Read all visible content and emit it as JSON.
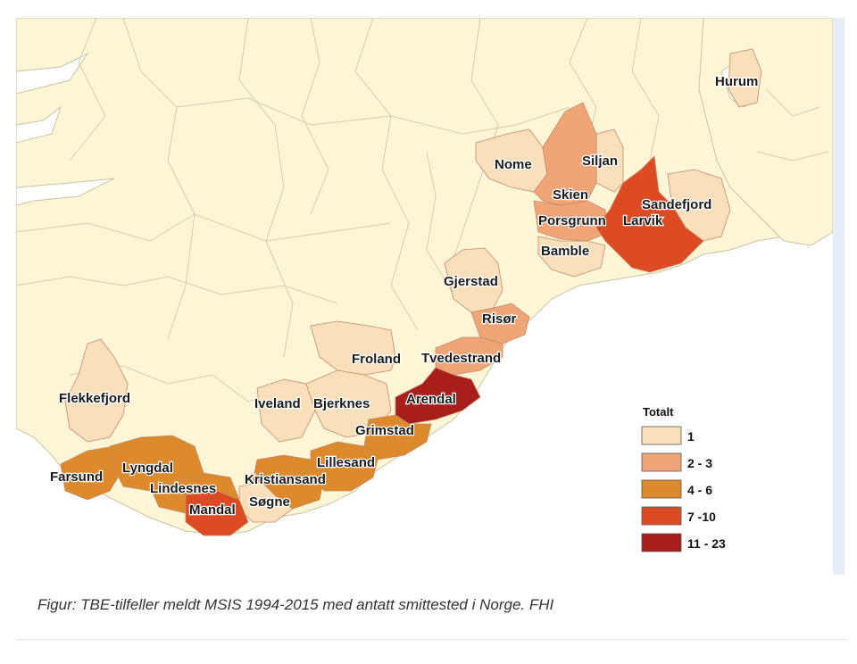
{
  "legend": {
    "title": "Totalt",
    "classes": [
      {
        "label": "1",
        "color": "#f9dfba"
      },
      {
        "label": "2 - 3",
        "color": "#f0a576"
      },
      {
        "label": "4 - 6",
        "color": "#dc8a2c"
      },
      {
        "label": "7 -10",
        "color": "#dd4b24"
      },
      {
        "label": "11 - 23",
        "color": "#a71e1c"
      }
    ]
  },
  "colors": {
    "land": "#fcf6d6",
    "border": "#c9c3a6",
    "sea": "#ffffff",
    "side_strip": "#e8eef7"
  },
  "municipalities": [
    {
      "name": "Hurum",
      "class": "1"
    },
    {
      "name": "Nome",
      "class": "1"
    },
    {
      "name": "Siljan",
      "class": "1"
    },
    {
      "name": "Skien",
      "class": "2 - 3"
    },
    {
      "name": "Sandefjord",
      "class": "1"
    },
    {
      "name": "Porsgrunn",
      "class": "2 - 3"
    },
    {
      "name": "Larvik",
      "class": "7 -10"
    },
    {
      "name": "Bamble",
      "class": "1"
    },
    {
      "name": "Gjerstad",
      "class": "1"
    },
    {
      "name": "Risør",
      "class": "2 - 3"
    },
    {
      "name": "Froland",
      "class": "1"
    },
    {
      "name": "Tvedestrand",
      "class": "2 - 3"
    },
    {
      "name": "Flekkefjord",
      "class": "1"
    },
    {
      "name": "Iveland",
      "class": "1"
    },
    {
      "name": "Bjerknes",
      "class": "1"
    },
    {
      "name": "Arendal",
      "class": "11 - 23"
    },
    {
      "name": "Grimstad",
      "class": "4 - 6"
    },
    {
      "name": "Farsund",
      "class": "4 - 6"
    },
    {
      "name": "Lyngdal",
      "class": "4 - 6"
    },
    {
      "name": "Lillesand",
      "class": "4 - 6"
    },
    {
      "name": "Lindesnes",
      "class": "4 - 6"
    },
    {
      "name": "Kristiansand",
      "class": "4 - 6"
    },
    {
      "name": "Søgne",
      "class": "1"
    },
    {
      "name": "Mandal",
      "class": "7 -10"
    }
  ],
  "caption": "Figur: TBE-tilfeller meldt MSIS 1994-2015 med antatt smittested i Norge. FHI"
}
